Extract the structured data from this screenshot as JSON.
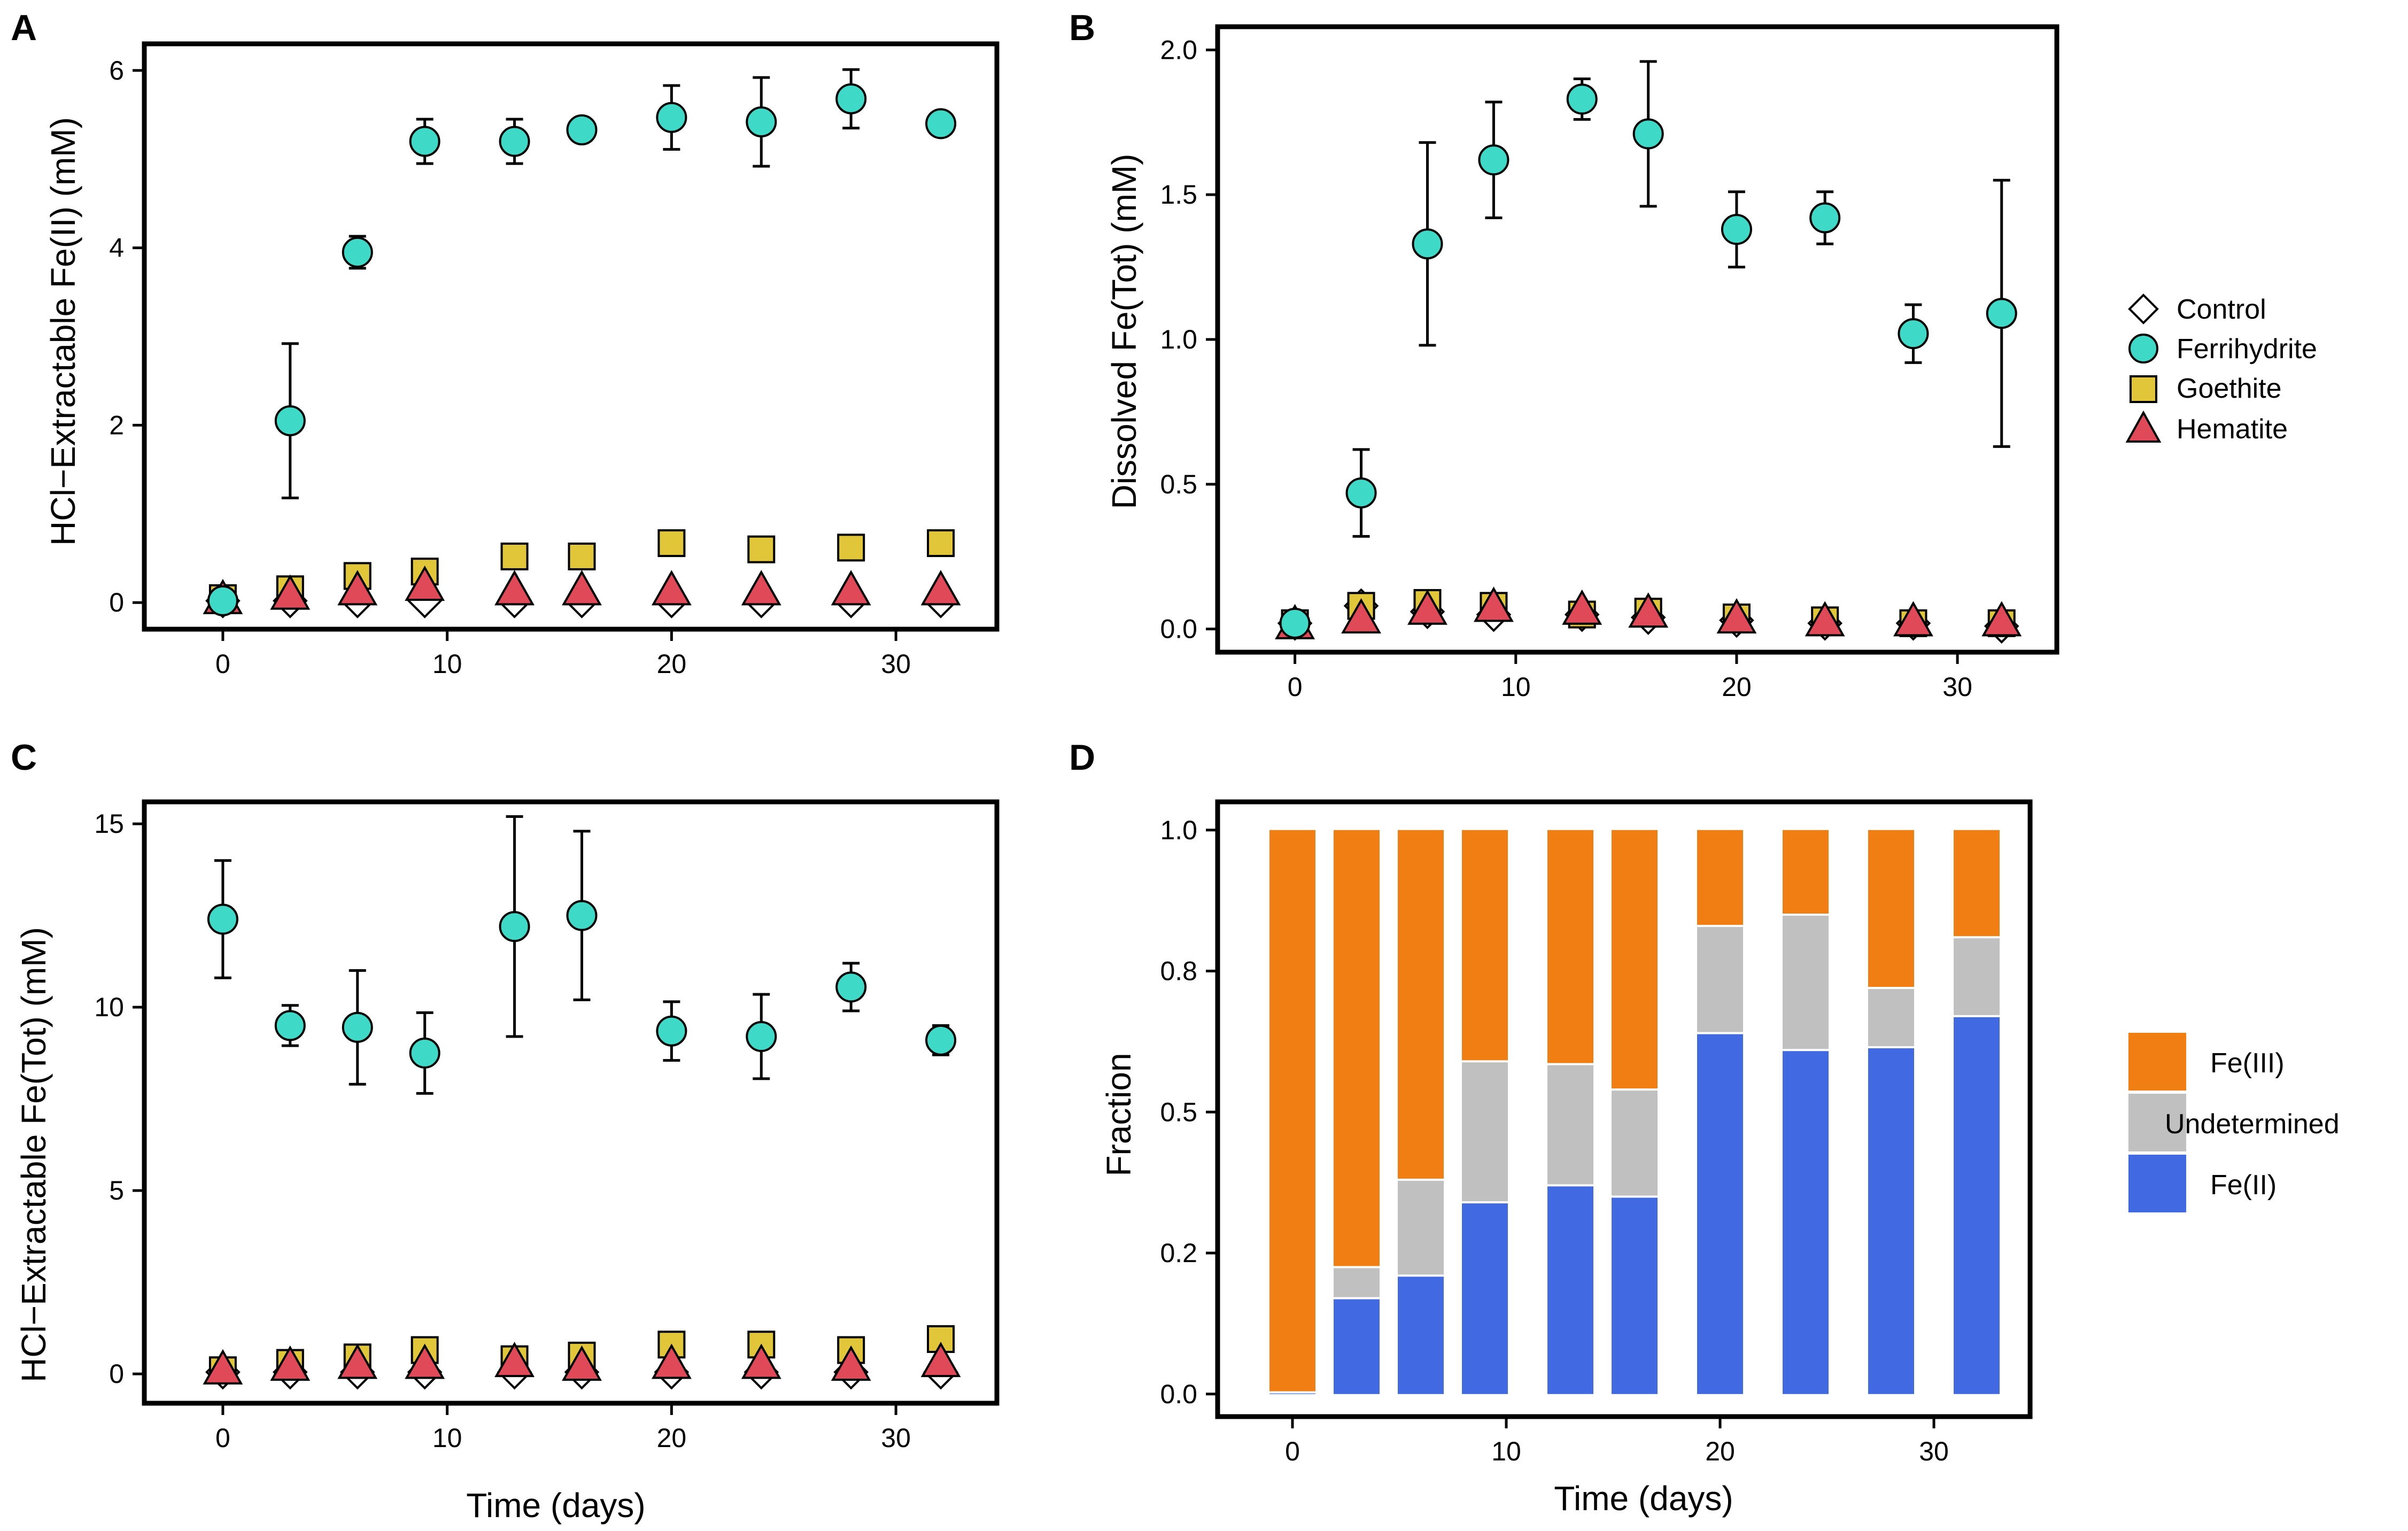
{
  "chart_data": [
    {
      "panel": "A",
      "type": "scatter",
      "ylabel": "HCl−Extractable Fe(II) (mM)",
      "xlabel": "",
      "xlim": [
        -3.5,
        34.5
      ],
      "ylim": [
        -0.3,
        6.3
      ],
      "xticks": [
        0,
        10,
        20,
        30
      ],
      "yticks": [
        0,
        2,
        4,
        6
      ],
      "ytick_labels": [
        "0",
        "2",
        "4",
        "6"
      ],
      "x": [
        0,
        3,
        6,
        9,
        13,
        16,
        20,
        24,
        28,
        32
      ],
      "series": [
        {
          "name": "Control",
          "marker": "diamond",
          "color": "#ffffff",
          "values": [
            0.02,
            0.02,
            0.02,
            0.02,
            0.02,
            0.02,
            0.02,
            0.02,
            0.02,
            0.02
          ]
        },
        {
          "name": "Ferrihydrite",
          "marker": "circle",
          "color": "#3fd9c8",
          "values": [
            0.02,
            2.05,
            3.95,
            5.2,
            5.2,
            5.33,
            5.47,
            5.42,
            5.68,
            5.4
          ],
          "err": [
            0,
            0.87,
            0.18,
            0.25,
            0.25,
            0,
            0.36,
            0.5,
            0.33,
            0
          ]
        },
        {
          "name": "Goethite",
          "marker": "square",
          "color": "#e2c63a",
          "values": [
            0.05,
            0.15,
            0.3,
            0.35,
            0.52,
            0.52,
            0.67,
            0.6,
            0.62,
            0.67
          ]
        },
        {
          "name": "Hematite",
          "marker": "triangle",
          "color": "#e04a58",
          "values": [
            0.05,
            0.1,
            0.15,
            0.2,
            0.15,
            0.15,
            0.15,
            0.15,
            0.15,
            0.15
          ]
        }
      ]
    },
    {
      "panel": "B",
      "type": "scatter",
      "ylabel": "Dissolved Fe(Tot) (mM)",
      "xlabel": "",
      "xlim": [
        -3.5,
        34.5
      ],
      "ylim": [
        -0.08,
        2.08
      ],
      "xticks": [
        0,
        10,
        20,
        30
      ],
      "yticks": [
        0,
        0.5,
        1.0,
        1.5,
        2.0
      ],
      "ytick_labels": [
        "0.0",
        "0.5",
        "1.0",
        "1.5",
        "2.0"
      ],
      "x": [
        0,
        3,
        6,
        9,
        13,
        16,
        20,
        24,
        28,
        32
      ],
      "series": [
        {
          "name": "Control",
          "marker": "diamond",
          "color": "#ffffff",
          "values": [
            0.02,
            0.08,
            0.06,
            0.05,
            0.05,
            0.04,
            0.03,
            0.02,
            0.02,
            0.01
          ]
        },
        {
          "name": "Ferrihydrite",
          "marker": "circle",
          "color": "#3fd9c8",
          "values": [
            0.02,
            0.47,
            1.33,
            1.62,
            1.83,
            1.71,
            1.38,
            1.42,
            1.02,
            1.09
          ],
          "err": [
            0,
            0.15,
            0.35,
            0.2,
            0.07,
            0.25,
            0.13,
            0.09,
            0.1,
            0.46
          ]
        },
        {
          "name": "Goethite",
          "marker": "square",
          "color": "#e2c63a",
          "values": [
            0.02,
            0.08,
            0.09,
            0.08,
            0.05,
            0.06,
            0.04,
            0.03,
            0.02,
            0.02
          ]
        },
        {
          "name": "Hematite",
          "marker": "triangle",
          "color": "#e04a58",
          "values": [
            0.02,
            0.04,
            0.07,
            0.08,
            0.07,
            0.06,
            0.04,
            0.03,
            0.03,
            0.03
          ]
        }
      ]
    },
    {
      "panel": "C",
      "type": "scatter",
      "ylabel": "HCl−Extractable Fe(Tot) (mM)",
      "xlabel": "Time (days)",
      "xlim": [
        -3.5,
        34.5
      ],
      "ylim": [
        -0.8,
        15.6
      ],
      "xticks": [
        0,
        10,
        20,
        30
      ],
      "yticks": [
        0,
        5,
        10,
        15
      ],
      "ytick_labels": [
        "0",
        "5",
        "10",
        "15"
      ],
      "x": [
        0,
        3,
        6,
        9,
        13,
        16,
        20,
        24,
        28,
        32
      ],
      "series": [
        {
          "name": "Control",
          "marker": "diamond",
          "color": "#ffffff",
          "values": [
            0.05,
            0.05,
            0.05,
            0.05,
            0.05,
            0.05,
            0.05,
            0.05,
            0.05,
            0.05
          ]
        },
        {
          "name": "Ferrihydrite",
          "marker": "circle",
          "color": "#3fd9c8",
          "values": [
            12.4,
            9.5,
            9.45,
            8.75,
            12.2,
            12.5,
            9.35,
            9.2,
            10.55,
            9.1
          ],
          "err": [
            1.6,
            0.55,
            1.55,
            1.1,
            3.0,
            2.3,
            0.8,
            1.15,
            0.65,
            0.4
          ]
        },
        {
          "name": "Goethite",
          "marker": "square",
          "color": "#e2c63a",
          "values": [
            0.1,
            0.3,
            0.45,
            0.65,
            0.4,
            0.5,
            0.8,
            0.8,
            0.65,
            0.95
          ]
        },
        {
          "name": "Hematite",
          "marker": "triangle",
          "color": "#e04a58",
          "values": [
            0.15,
            0.25,
            0.3,
            0.3,
            0.35,
            0.25,
            0.3,
            0.3,
            0.25,
            0.35
          ]
        }
      ]
    },
    {
      "panel": "D",
      "type": "bar",
      "stacked": true,
      "ylabel": "Fraction",
      "xlabel": "Time (days)",
      "xlim": [
        -3.5,
        34.5
      ],
      "ylim": [
        -0.04,
        1.05
      ],
      "xticks": [
        0,
        10,
        20,
        30
      ],
      "yticks": [
        0,
        0.25,
        0.5,
        0.75,
        1.0
      ],
      "ytick_labels": [
        "0.0",
        "0.2",
        "0.5",
        "0.8",
        "1.0"
      ],
      "x": [
        0,
        3,
        6,
        9,
        13,
        16,
        20,
        24,
        28,
        32
      ],
      "series": [
        {
          "name": "Fe(II)",
          "color": "#4169e1",
          "values": [
            0.003,
            0.17,
            0.21,
            0.34,
            0.37,
            0.35,
            0.64,
            0.61,
            0.615,
            0.67
          ]
        },
        {
          "name": "Undetermined",
          "color": "#c0c0c0",
          "values": [
            0.0,
            0.055,
            0.17,
            0.25,
            0.215,
            0.19,
            0.19,
            0.24,
            0.105,
            0.14
          ]
        },
        {
          "name": "Fe(III)",
          "color": "#f07e12",
          "values": [
            0.997,
            0.775,
            0.62,
            0.41,
            0.415,
            0.46,
            0.17,
            0.15,
            0.28,
            0.19
          ]
        }
      ]
    }
  ],
  "panels": {
    "a": {
      "label": "A"
    },
    "b": {
      "label": "B"
    },
    "c": {
      "label": "C"
    },
    "d": {
      "label": "D"
    }
  },
  "xtick_labels": [
    "0",
    "10",
    "20",
    "30"
  ],
  "legend_top": {
    "entries": [
      "Control",
      "Ferrihydrite",
      "Goethite",
      "Hematite"
    ]
  },
  "legend_bottom": {
    "entries": [
      "Fe(III)",
      "Undetermined",
      "Fe(II)"
    ]
  }
}
